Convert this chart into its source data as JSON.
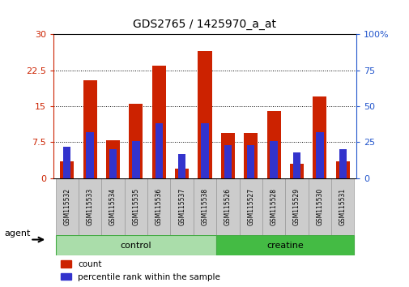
{
  "title": "GDS2765 / 1425970_a_at",
  "categories": [
    "GSM115532",
    "GSM115533",
    "GSM115534",
    "GSM115535",
    "GSM115536",
    "GSM115537",
    "GSM115538",
    "GSM115526",
    "GSM115527",
    "GSM115528",
    "GSM115529",
    "GSM115530",
    "GSM115531"
  ],
  "count_values": [
    3.5,
    20.5,
    8.0,
    15.5,
    23.5,
    2.0,
    26.5,
    9.5,
    9.5,
    14.0,
    3.0,
    17.0,
    3.5
  ],
  "percentile_values": [
    22,
    32,
    20,
    26,
    38,
    17,
    38,
    23,
    23,
    26,
    18,
    32,
    20
  ],
  "left_ylim": [
    0,
    30
  ],
  "right_ylim": [
    0,
    100
  ],
  "left_yticks": [
    0,
    7.5,
    15,
    22.5,
    30
  ],
  "right_yticks": [
    0,
    25,
    50,
    75,
    100
  ],
  "left_yticklabels": [
    "0",
    "7.5",
    "15",
    "22.5",
    "30"
  ],
  "right_yticklabels": [
    "0",
    "25",
    "50",
    "75",
    "100%"
  ],
  "bar_color": "#cc2200",
  "blue_color": "#3333cc",
  "bg_color": "#ffffff",
  "grid_color": "#000000",
  "agent_label": "agent",
  "legend_count": "count",
  "legend_percentile": "percentile rank within the sample",
  "left_axis_color": "#cc2200",
  "right_axis_color": "#2255cc",
  "control_color": "#aaddaa",
  "creatine_color": "#44bb44",
  "group_border_color": "#44aa44",
  "tick_bg_color": "#cccccc",
  "n_control": 7,
  "n_creatine": 6
}
